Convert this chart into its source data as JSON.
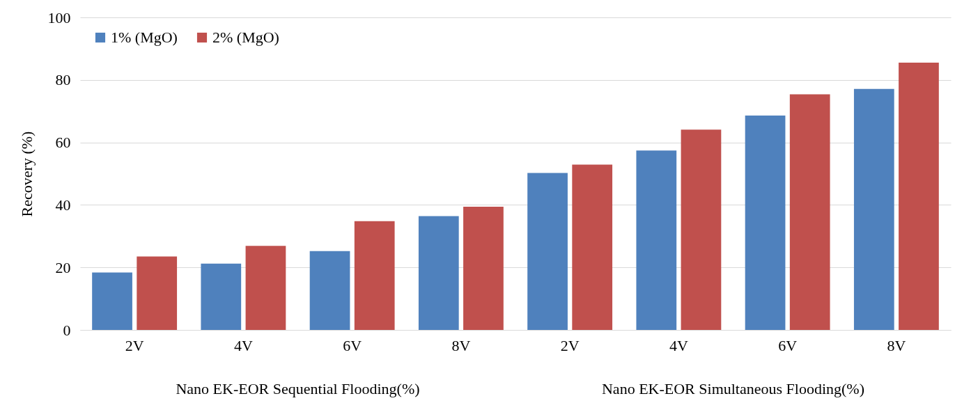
{
  "chart_data": {
    "type": "bar",
    "ylabel": "Recovery (%)",
    "categories": [
      "2V",
      "4V",
      "6V",
      "8V",
      "2V",
      "4V",
      "6V",
      "8V"
    ],
    "series": [
      {
        "name": "1% (MgO)",
        "color": "#4f81bd",
        "values": [
          18.4,
          21.2,
          25.2,
          36.4,
          50.2,
          57.4,
          68.6,
          77.1
        ]
      },
      {
        "name": "2% (MgO)",
        "color": "#c0504d",
        "values": [
          23.5,
          26.9,
          34.8,
          39.4,
          52.9,
          64.1,
          75.4,
          85.5
        ]
      }
    ],
    "annotations": [
      "Nano EK-EOR Sequential Flooding(%)",
      "Nano EK-EOR Simultaneous Flooding(%)"
    ],
    "ylim": [
      0,
      100
    ],
    "yticks": [
      0,
      20,
      40,
      60,
      80,
      100
    ],
    "grid": "y",
    "legend": "top left"
  }
}
